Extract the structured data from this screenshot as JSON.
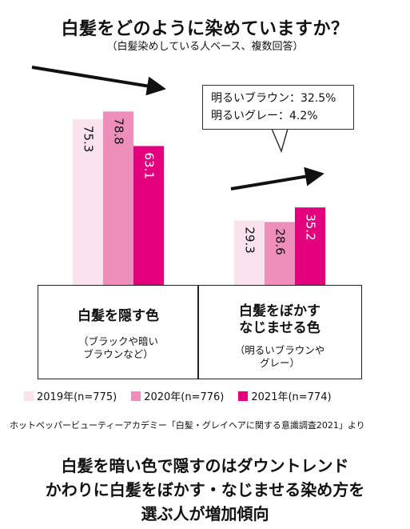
{
  "chart_data": {
    "type": "bar",
    "title": "白髪をどのように染めていますか？",
    "subtitle": "（白髪染めしている人ベース、複数回答）",
    "categories": [
      {
        "main": [
          "白髪を隠す色"
        ],
        "sub": [
          "（ブラックや暗い",
          "ブラウンなど）"
        ]
      },
      {
        "main": [
          "白髪をぼかす",
          "なじませる色"
        ],
        "sub": [
          "（明るいブラウンや",
          "グレー）"
        ]
      }
    ],
    "series": [
      {
        "name": "2019年(n=775)",
        "color": "#fbe3ee",
        "values": [
          75.3,
          29.3
        ]
      },
      {
        "name": "2020年(n=776)",
        "color": "#ee8fbb",
        "values": [
          78.8,
          28.6
        ]
      },
      {
        "name": "2021年(n=774)",
        "color": "#e2007d",
        "values": [
          63.1,
          35.2
        ]
      }
    ],
    "value_labels": [
      [
        "75.3",
        "29.3"
      ],
      [
        "78.8",
        "28.6"
      ],
      [
        "63.1",
        "35.2"
      ]
    ],
    "trend_arrows": [
      "down",
      "up"
    ],
    "annotation": [
      "明るいブラウン：32.5%",
      "明るいグレー：4.2%"
    ],
    "ylim": [
      0,
      100
    ],
    "legend_position": "bottom"
  },
  "source": "ホットペッパービューティーアカデミー「白髪・グレイヘアに関する意識調査2021」より",
  "headline": [
    "白髪を暗い色で隠すのはダウントレンド",
    "かわりに白髪をぼかす・なじませる染め方を",
    "選ぶ人が増加傾向"
  ]
}
